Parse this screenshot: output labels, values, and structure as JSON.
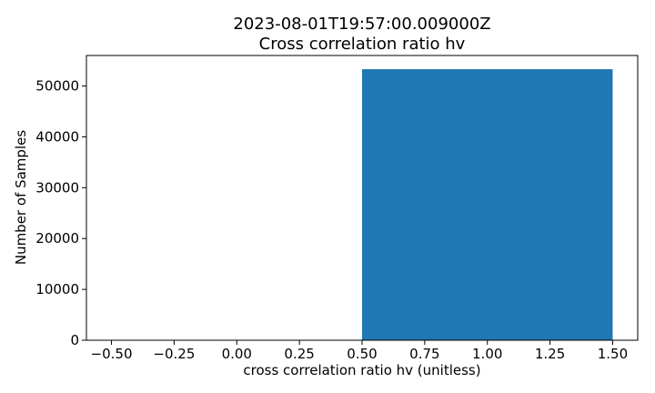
{
  "chart_data": {
    "type": "bar",
    "title_line1": "2023-08-01T19:57:00.009000Z",
    "title_line2": "Cross correlation ratio hv",
    "xlabel": "cross correlation ratio hv (unitless)",
    "ylabel": "Number of Samples",
    "xlim": [
      -0.6,
      1.6
    ],
    "ylim": [
      0,
      56000
    ],
    "xticks": [
      -0.5,
      -0.25,
      0.0,
      0.25,
      0.5,
      0.75,
      1.0,
      1.25,
      1.5
    ],
    "xtick_labels": [
      "−0.50",
      "−0.25",
      "0.00",
      "0.25",
      "0.50",
      "0.75",
      "1.00",
      "1.25",
      "1.50"
    ],
    "yticks": [
      0,
      10000,
      20000,
      30000,
      40000,
      50000
    ],
    "ytick_labels": [
      "0",
      "10000",
      "20000",
      "30000",
      "40000",
      "50000"
    ],
    "bars": [
      {
        "x0": 0.5,
        "x1": 1.5,
        "value": 53300
      }
    ],
    "bar_color": "#1f77b4",
    "grid": false,
    "legend": "none"
  }
}
